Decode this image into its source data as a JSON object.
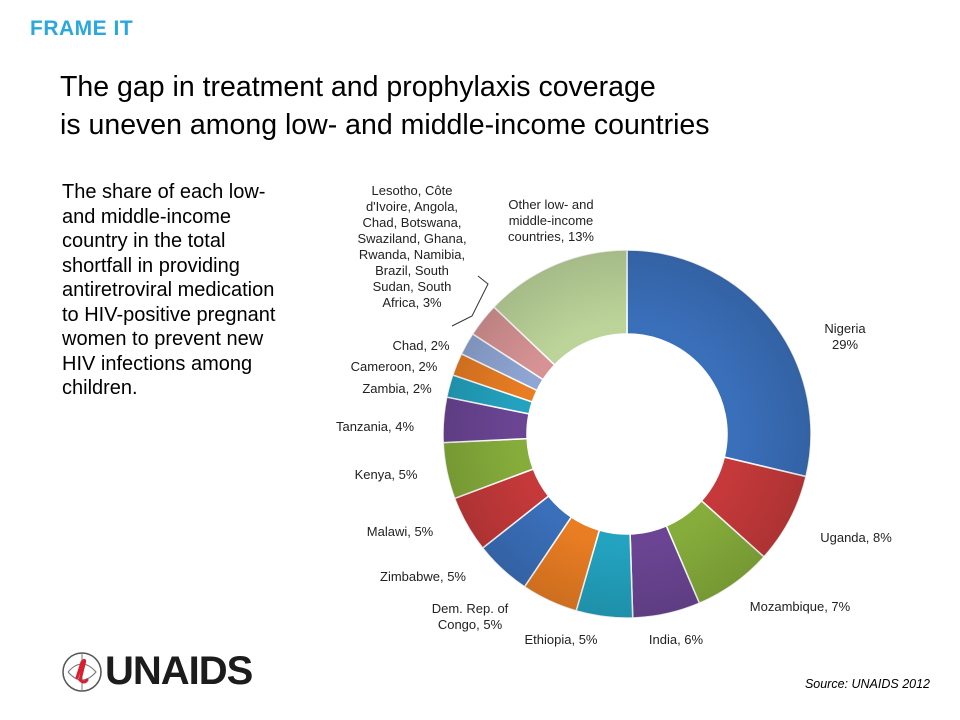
{
  "tag": "FRAME IT",
  "title_line1": "The gap in treatment and prophylaxis coverage",
  "title_line2": "is uneven among low- and middle-income countries",
  "description": "The share of each low- and middle-income country in the total shortfall in providing antiretroviral medication to HIV-positive pregnant women to prevent new HIV infections among children.",
  "source": "Source: UNAIDS 2012",
  "logo_text": "UNAIDS",
  "chart_data": {
    "type": "pie",
    "subtype": "donut",
    "unit": "%",
    "series": [
      {
        "name": "Nigeria",
        "label": "Nigeria\n29%",
        "value": 29,
        "color": "#3a6fba"
      },
      {
        "name": "Uganda",
        "label": "Uganda, 8%",
        "value": 8,
        "color": "#c5393a"
      },
      {
        "name": "Mozambique",
        "label": "Mozambique, 7%",
        "value": 7,
        "color": "#86ad3b"
      },
      {
        "name": "India",
        "label": "India, 6%",
        "value": 6,
        "color": "#6b4594"
      },
      {
        "name": "Ethiopia",
        "label": "Ethiopia, 5%",
        "value": 5,
        "color": "#23a3c0"
      },
      {
        "name": "Dem. Rep. of Congo",
        "label": "Dem. Rep. of\nCongo, 5%",
        "value": 5,
        "color": "#e97d23"
      },
      {
        "name": "Zimbabwe",
        "label": "Zimbabwe, 5%",
        "value": 5,
        "color": "#3a6fba"
      },
      {
        "name": "Malawi",
        "label": "Malawi, 5%",
        "value": 5,
        "color": "#c5393a"
      },
      {
        "name": "Kenya",
        "label": "Kenya, 5%",
        "value": 5,
        "color": "#86ad3b"
      },
      {
        "name": "Tanzania",
        "label": "Tanzania, 4%",
        "value": 4,
        "color": "#6b4594"
      },
      {
        "name": "Zambia",
        "label": "Zambia, 2%",
        "value": 2,
        "color": "#23a3c0"
      },
      {
        "name": "Cameroon",
        "label": "Cameroon, 2%",
        "value": 2,
        "color": "#e97d23"
      },
      {
        "name": "Chad",
        "label": "Chad, 2%",
        "value": 2,
        "color": "#8fa6d4"
      },
      {
        "name": "Lesotho, Côte d'Ivoire, Angola, Chad, Botswana, Swaziland, Ghana, Rwanda, Namibia, Brazil, South Sudan, South Africa",
        "label": "Lesotho, Côte\nd'Ivoire, Angola,\nChad, Botswana,\nSwaziland, Ghana,\nRwanda, Namibia,\nBrazil, South\nSudan, South\nAfrica, 3%",
        "value": 3,
        "color": "#d79394"
      },
      {
        "name": "Other low- and middle-income countries",
        "label": "Other low- and\nmiddle-income\ncountries, 13%",
        "value": 13,
        "color": "#bcd49a"
      }
    ]
  }
}
